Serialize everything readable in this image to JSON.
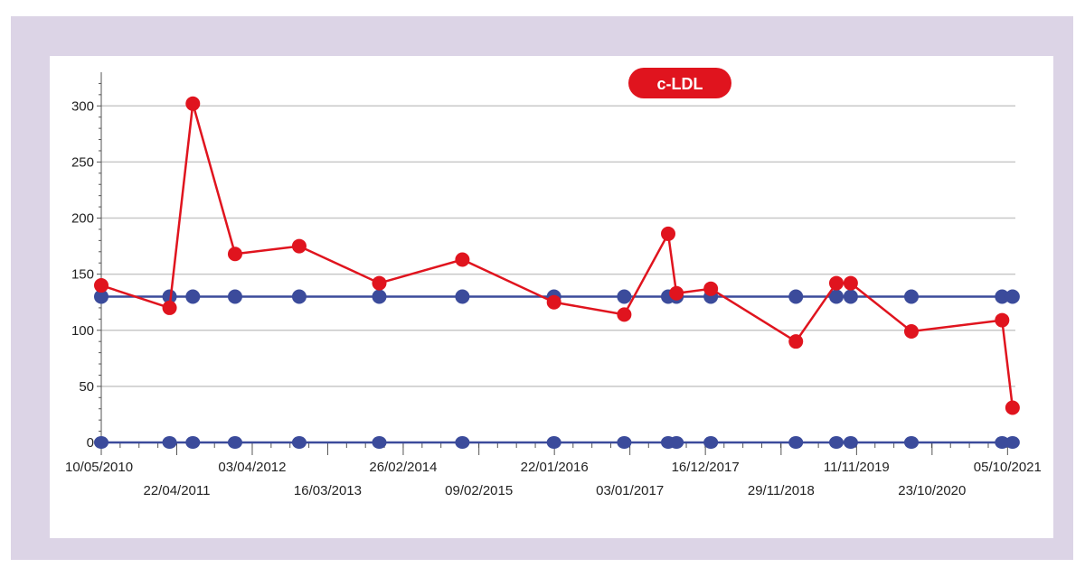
{
  "chart_data": {
    "type": "line",
    "title": "c-LDL",
    "xlabel": "",
    "ylabel": "",
    "x_axis_type": "date",
    "xlim": [
      "2010-05-10",
      "2021-11-10"
    ],
    "ylim": [
      0,
      330
    ],
    "y_ticks": [
      0,
      50,
      100,
      150,
      200,
      250,
      300
    ],
    "y_tick_labels": [
      "0",
      "50",
      "100",
      "150",
      "200",
      "250",
      "300"
    ],
    "x_tick_dates": [
      "2010-05-10",
      "2011-04-22",
      "2012-04-03",
      "2013-03-16",
      "2014-02-26",
      "2015-02-09",
      "2016-01-22",
      "2017-01-03",
      "2017-12-16",
      "2018-11-29",
      "2019-11-11",
      "2020-10-23",
      "2021-10-05"
    ],
    "x_tick_labels": [
      "10/05/2010",
      "22/04/2011",
      "03/04/2012",
      "16/03/2013",
      "26/02/2014",
      "09/02/2015",
      "22/01/2016",
      "03/01/2017",
      "16/12/2017",
      "29/11/2018",
      "11/11/2019",
      "23/10/2020",
      "05/10/2021"
    ],
    "grid": true,
    "colors": {
      "measured": "#e0141e",
      "reference": "#3b4b9b",
      "grid": "#c8c8c8",
      "axis": "#555555",
      "frame": "#dcd4e6",
      "title_bg": "#e0141e"
    },
    "series": [
      {
        "x": [
          "2010-05-10",
          "2011-03-20",
          "2011-07-05",
          "2012-01-15",
          "2012-11-05",
          "2013-11-08",
          "2014-11-25",
          "2016-01-20",
          "2016-12-08",
          "2017-06-28",
          "2017-08-05",
          "2018-01-10",
          "2019-02-05",
          "2019-08-10",
          "2019-10-15",
          "2020-07-20",
          "2021-09-10",
          "2021-10-28"
        ],
        "values": [
          140,
          120,
          302,
          168,
          175,
          142,
          163,
          125,
          114,
          186,
          133,
          137,
          90,
          142,
          142,
          99,
          109,
          31
        ]
      },
      {
        "x": [
          "2010-05-10",
          "2011-03-20",
          "2011-07-05",
          "2012-01-15",
          "2012-11-05",
          "2013-11-08",
          "2014-11-25",
          "2016-01-20",
          "2016-12-08",
          "2017-06-28",
          "2017-08-05",
          "2018-01-10",
          "2019-02-05",
          "2019-08-10",
          "2019-10-15",
          "2020-07-20",
          "2021-09-10",
          "2021-10-28"
        ],
        "values": [
          130,
          130,
          130,
          130,
          130,
          130,
          130,
          130,
          130,
          130,
          130,
          130,
          130,
          130,
          130,
          130,
          130,
          130
        ]
      },
      {
        "x": [
          "2010-05-10",
          "2011-03-20",
          "2011-07-05",
          "2012-01-15",
          "2012-11-05",
          "2013-11-08",
          "2014-11-25",
          "2016-01-20",
          "2016-12-08",
          "2017-06-28",
          "2017-08-05",
          "2018-01-10",
          "2019-02-05",
          "2019-08-10",
          "2019-10-15",
          "2020-07-20",
          "2021-09-10",
          "2021-10-28"
        ],
        "values": [
          0,
          0,
          0,
          0,
          0,
          0,
          0,
          0,
          0,
          0,
          0,
          0,
          0,
          0,
          0,
          0,
          0,
          0
        ]
      }
    ]
  }
}
